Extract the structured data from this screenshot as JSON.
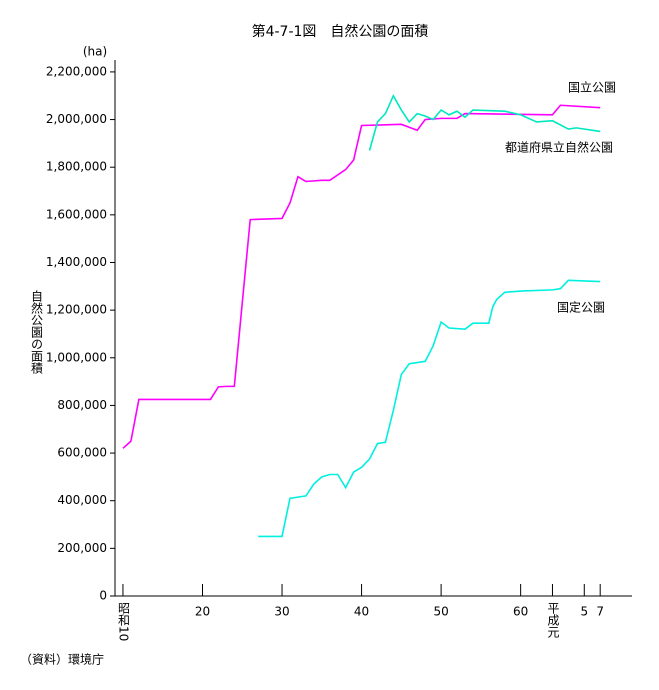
{
  "chart_data": {
    "type": "line",
    "title": "第4-7-1図　自然公園の面積",
    "y_label": "自然公園の面積",
    "y_unit": "(ha)",
    "source": "（資料）環境庁",
    "xlim": [
      9,
      74
    ],
    "xticks": [
      {
        "value": 10,
        "label": "昭和10"
      },
      20,
      30,
      40,
      50,
      60,
      {
        "value": 64,
        "label": "平成元"
      },
      {
        "value": 68,
        "label": "5"
      },
      {
        "value": 70,
        "label": "7"
      }
    ],
    "ylim": [
      0,
      2250000
    ],
    "yticks": [
      0,
      {
        "value": 200000,
        "label": "200,000"
      },
      {
        "value": 400000,
        "label": "400,000"
      },
      {
        "value": 600000,
        "label": "600,000"
      },
      {
        "value": 800000,
        "label": "800,000"
      },
      {
        "value": 1000000,
        "label": "1,000,000"
      },
      {
        "value": 1200000,
        "label": "1,200,000"
      },
      {
        "value": 1400000,
        "label": "1,400,000"
      },
      {
        "value": 1600000,
        "label": "1,600,000"
      },
      {
        "value": 1800000,
        "label": "1,800,000"
      },
      {
        "value": 2000000,
        "label": "2,000,000"
      },
      {
        "value": 2200000,
        "label": "2,200,000"
      }
    ],
    "series": [
      {
        "name": "国立公園",
        "color": "#ff00ff",
        "x": [
          10,
          11,
          12,
          21,
          22,
          23,
          24,
          26,
          30,
          31,
          32,
          33,
          35,
          36,
          38,
          39,
          40,
          45,
          47,
          48,
          50,
          52,
          53,
          64,
          65,
          70
        ],
        "values": [
          620000,
          650000,
          825000,
          825000,
          878000,
          880000,
          880000,
          1580000,
          1585000,
          1650000,
          1760000,
          1740000,
          1745000,
          1745000,
          1790000,
          1830000,
          1975000,
          1980000,
          1955000,
          2000000,
          2005000,
          2005000,
          2025000,
          2020000,
          2060000,
          2050000
        ]
      },
      {
        "name": "都道府県立自然公園",
        "color": "#00e8c0",
        "x": [
          41,
          42,
          43,
          44,
          45,
          46,
          47,
          48,
          49,
          50,
          51,
          52,
          53,
          54,
          58,
          60,
          62,
          64,
          66,
          67,
          70
        ],
        "values": [
          1870000,
          1990000,
          2025000,
          2100000,
          2040000,
          1990000,
          2025000,
          2015000,
          2000000,
          2040000,
          2020000,
          2035000,
          2010000,
          2040000,
          2035000,
          2020000,
          1990000,
          1995000,
          1960000,
          1965000,
          1950000
        ]
      },
      {
        "name": "国定公園",
        "color": "#00f0e0",
        "x": [
          27,
          30,
          31,
          32,
          33,
          34,
          35,
          36,
          37,
          38,
          39,
          40,
          41,
          42,
          43,
          44,
          45,
          46,
          47,
          48,
          49,
          50,
          51,
          53,
          54,
          56,
          56.5,
          57,
          58,
          60,
          64,
          65,
          66,
          70
        ],
        "values": [
          250000,
          250000,
          410000,
          415000,
          420000,
          470000,
          500000,
          510000,
          510000,
          455000,
          520000,
          540000,
          575000,
          640000,
          645000,
          780000,
          930000,
          975000,
          980000,
          985000,
          1050000,
          1150000,
          1125000,
          1120000,
          1145000,
          1145000,
          1215000,
          1245000,
          1275000,
          1280000,
          1285000,
          1290000,
          1325000,
          1320000
        ]
      }
    ]
  }
}
